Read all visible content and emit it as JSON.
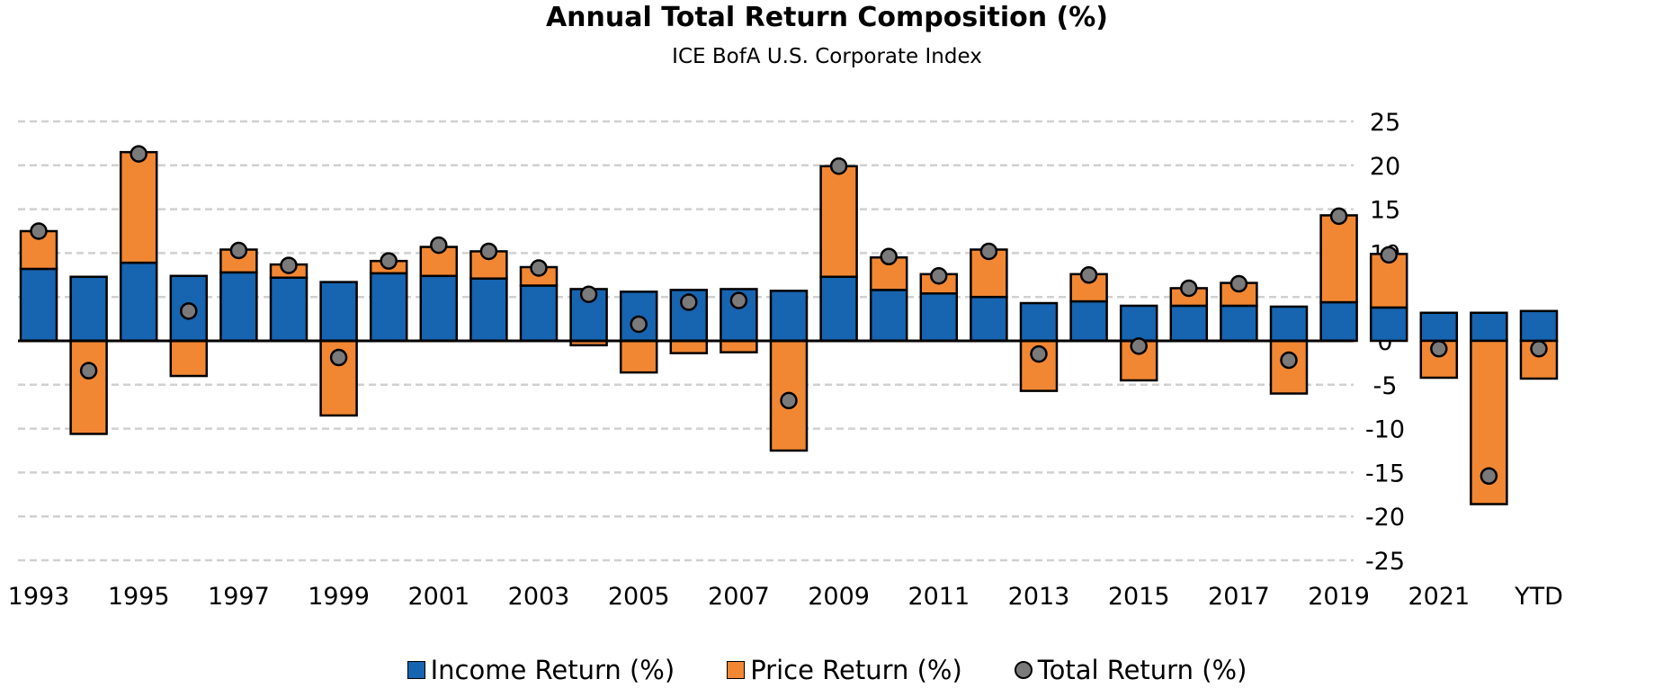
{
  "chart_data": {
    "type": "bar",
    "stacked": true,
    "title": "Annual Total Return Composition (%)",
    "subtitle": "ICE BofA U.S. Corporate Index",
    "categories": [
      "1993",
      "1994",
      "1995",
      "1996",
      "1997",
      "1998",
      "1999",
      "2000",
      "2001",
      "2002",
      "2003",
      "2004",
      "2005",
      "2006",
      "2007",
      "2008",
      "2009",
      "2010",
      "2011",
      "2012",
      "2013",
      "2014",
      "2015",
      "2016",
      "2017",
      "2018",
      "2019",
      "2020",
      "2021",
      "2022",
      "YTD"
    ],
    "x_tick_labels": [
      "1993",
      "",
      "1995",
      "",
      "1997",
      "",
      "1999",
      "",
      "2001",
      "",
      "2003",
      "",
      "2005",
      "",
      "2007",
      "",
      "2009",
      "",
      "2011",
      "",
      "2013",
      "",
      "2015",
      "",
      "2017",
      "",
      "2019",
      "",
      "2021",
      "",
      "YTD"
    ],
    "series": [
      {
        "name": "Income Return (%)",
        "color": "#1764B0",
        "values": [
          8.2,
          7.3,
          8.9,
          7.4,
          7.8,
          7.2,
          6.7,
          7.7,
          7.4,
          7.1,
          6.3,
          5.9,
          5.6,
          5.8,
          5.9,
          5.7,
          7.3,
          5.8,
          5.4,
          5.0,
          4.3,
          4.5,
          4.0,
          4.0,
          4.0,
          3.9,
          4.4,
          3.8,
          3.2,
          3.2,
          3.4
        ]
      },
      {
        "name": "Price Return (%)",
        "color": "#F28733",
        "values": [
          4.3,
          -10.6,
          12.6,
          -4.0,
          2.6,
          1.5,
          -8.5,
          1.4,
          3.3,
          3.1,
          2.1,
          -0.5,
          -3.6,
          -1.4,
          -1.3,
          -12.5,
          12.6,
          3.7,
          2.2,
          5.4,
          -5.7,
          3.1,
          -4.5,
          2.0,
          2.6,
          -6.0,
          9.9,
          6.1,
          -4.2,
          -18.6,
          -4.3
        ]
      },
      {
        "name": "Total Return (%)",
        "color": "#7A7A7A",
        "type": "scatter",
        "values": [
          12.5,
          -3.4,
          21.3,
          3.4,
          10.3,
          8.6,
          -1.9,
          9.1,
          10.9,
          10.2,
          8.3,
          5.3,
          1.9,
          4.4,
          4.6,
          -6.8,
          19.9,
          9.6,
          7.4,
          10.2,
          -1.5,
          7.5,
          -0.6,
          6.0,
          6.5,
          -2.2,
          14.2,
          9.8,
          -0.9,
          -15.4,
          -0.9
        ]
      }
    ],
    "ylim": [
      -25,
      25
    ],
    "yticks": [
      25,
      20,
      15,
      10,
      5,
      0,
      -5,
      -10,
      -15,
      -20,
      -25
    ],
    "y_axis_position": "right",
    "grid": true,
    "legend_position": "bottom"
  }
}
